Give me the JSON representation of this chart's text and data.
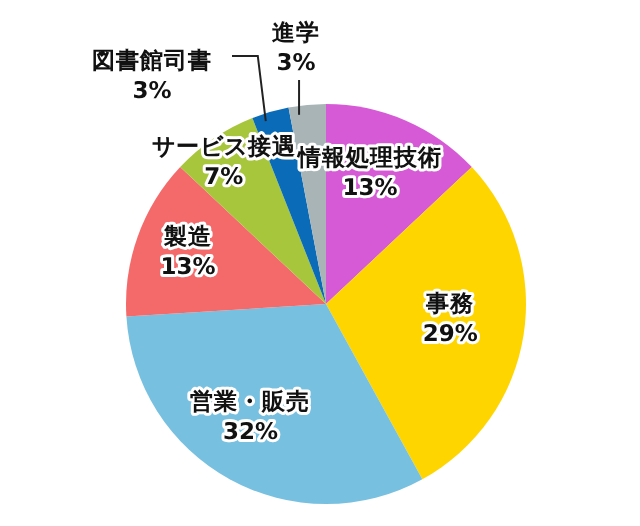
{
  "chart_data": {
    "type": "pie",
    "categories": [
      "情報処理技術",
      "事務",
      "営業・販売",
      "製造",
      "サービス接遇",
      "図書館司書",
      "進学"
    ],
    "values": [
      13,
      29,
      32,
      13,
      7,
      3,
      3
    ],
    "value_labels": [
      "13%",
      "29%",
      "32%",
      "13%",
      "7%",
      "3%",
      "3%"
    ],
    "colors": [
      "#d65ad6",
      "#ffd500",
      "#78c0e0",
      "#f46a6a",
      "#a8c63c",
      "#0a6cb8",
      "#a9b4b6"
    ]
  }
}
